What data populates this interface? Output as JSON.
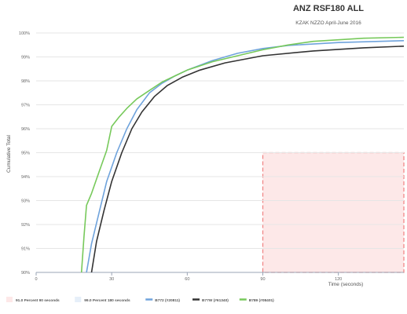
{
  "chart_data": {
    "type": "line",
    "title": "ANZ RSF180 ALL",
    "subtitle": "KZAK NZZO April-June 2016",
    "xlabel": "Time (seconds)",
    "ylabel": "Cumulative Total",
    "xlim": [
      0,
      146
    ],
    "ylim": [
      90,
      100
    ],
    "x_ticks": [
      0,
      30,
      60,
      90,
      120
    ],
    "x_tick_labels": [
      "0",
      "30",
      "60",
      "90",
      "120"
    ],
    "y_ticks": [
      90,
      91,
      92,
      93,
      94,
      95,
      96,
      97,
      98,
      99,
      100
    ],
    "y_tick_labels": [
      "90%",
      "91%",
      "92%",
      "93%",
      "94%",
      "95%",
      "96%",
      "97%",
      "98%",
      "99%",
      "100%"
    ],
    "grid": true,
    "legend_position": "bottom",
    "shaded_region": {
      "label": "91.0 Percent 90 seconds",
      "x_range": [
        90,
        146
      ],
      "y_range": [
        90,
        95
      ],
      "fill": "#fde8e8",
      "border": "#f08080"
    },
    "legend": [
      {
        "label": "91.0 Percent 90 seconds",
        "kind": "area",
        "color": "#fde8e8"
      },
      {
        "label": "99.0 Percent 180 seconds",
        "kind": "area",
        "color": "#e6eff9"
      },
      {
        "label": "B772 (#20811)",
        "kind": "line",
        "color": "#6fa3dc"
      },
      {
        "label": "B77W (#61340)",
        "kind": "line",
        "color": "#333333"
      },
      {
        "label": "B789 (#08401)",
        "kind": "line",
        "color": "#77c95b"
      }
    ],
    "series": [
      {
        "name": "B772 (#20811)",
        "color": "#6fa3dc",
        "x": [
          20,
          22,
          25,
          28,
          32,
          36,
          40,
          45,
          50,
          55,
          60,
          70,
          80,
          90,
          100,
          120,
          146
        ],
        "y": [
          90.0,
          91.2,
          92.5,
          93.8,
          95.0,
          96.0,
          96.8,
          97.5,
          97.9,
          98.2,
          98.45,
          98.85,
          99.15,
          99.35,
          99.48,
          99.6,
          99.68
        ]
      },
      {
        "name": "B77W (#61340)",
        "color": "#333333",
        "x": [
          22,
          24,
          27,
          30,
          34,
          38,
          42,
          47,
          52,
          58,
          65,
          75,
          90,
          110,
          130,
          146
        ],
        "y": [
          90.0,
          91.3,
          92.6,
          93.8,
          95.0,
          96.0,
          96.7,
          97.35,
          97.8,
          98.15,
          98.45,
          98.75,
          99.05,
          99.25,
          99.38,
          99.45
        ]
      },
      {
        "name": "B789 (#08401)",
        "color": "#77c95b",
        "x": [
          18,
          19,
          20,
          22,
          25,
          28,
          30,
          33,
          36,
          40,
          45,
          50,
          55,
          60,
          70,
          80,
          90,
          100,
          110,
          130,
          146
        ],
        "y": [
          90.0,
          91.5,
          92.8,
          93.3,
          94.2,
          95.1,
          96.1,
          96.5,
          96.85,
          97.25,
          97.6,
          97.95,
          98.2,
          98.45,
          98.8,
          99.05,
          99.3,
          99.5,
          99.65,
          99.78,
          99.82
        ]
      }
    ]
  }
}
